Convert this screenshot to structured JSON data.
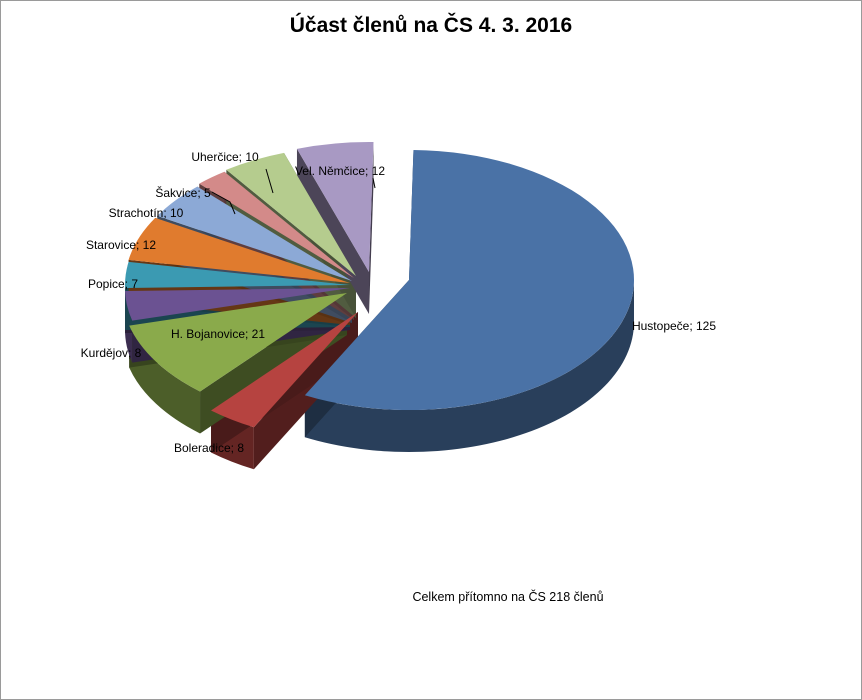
{
  "chart_data": {
    "type": "pie",
    "title": "Účast členů na ČS 4. 3. 2016",
    "note": "Celkem přítomno na ČS 218 členů",
    "slices": [
      {
        "name": "Hustopeče",
        "value": 125,
        "color": "#4A72A6",
        "label": "Hustopeče; 125"
      },
      {
        "name": "Boleradice",
        "value": 8,
        "color": "#B64340",
        "label": "Boleradice; 8"
      },
      {
        "name": "H. Bojanovice",
        "value": 21,
        "color": "#8AAA4B",
        "label": "H. Bojanovice; 21"
      },
      {
        "name": "Kurdějov",
        "value": 8,
        "color": "#6B5292",
        "label": "Kurdějov; 8"
      },
      {
        "name": "Popice",
        "value": 7,
        "color": "#3B9AB2",
        "label": "Popice; 7"
      },
      {
        "name": "Starovice",
        "value": 12,
        "color": "#E07B2E",
        "label": "Starovice; 12"
      },
      {
        "name": "Strachotín",
        "value": 10,
        "color": "#8CA9D6",
        "label": "Strachotín; 10"
      },
      {
        "name": "Šakvice",
        "value": 5,
        "color": "#D38A89",
        "label": "Šakvice; 5"
      },
      {
        "name": "Uherčice",
        "value": 10,
        "color": "#B5CC8E",
        "label": "Uherčice; 10"
      },
      {
        "name": "Vel. Němčice",
        "value": 12,
        "color": "#A899C3",
        "label": "Vel. Němčice; 12"
      }
    ],
    "legend": "none",
    "style": "3d-exploded"
  }
}
